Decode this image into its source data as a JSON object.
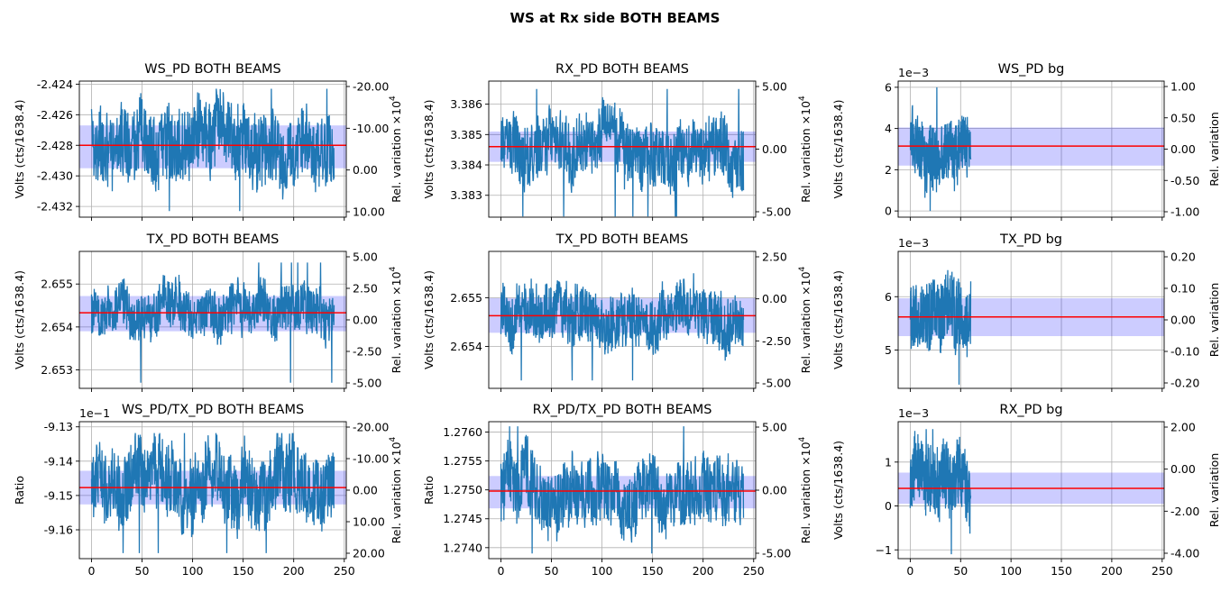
{
  "figure_title": "WS at Rx side BOTH BEAMS",
  "colors": {
    "trace": "#1f77b4",
    "mean_line": "#ff0000",
    "band": "#0000ff",
    "grid": "#b0b0b0",
    "axes": "#000000"
  },
  "chart_data": [
    {
      "type": "line",
      "title": "WS_PD BOTH BEAMS",
      "ylabel": "Volts (cts/1638.4)",
      "y2label": "Rel. variation ×10",
      "xlim": [
        -12,
        252
      ],
      "ylim": [
        -2.4327,
        -2.4238
      ],
      "yticks": [
        -2.424,
        -2.426,
        -2.428,
        -2.43,
        -2.432
      ],
      "ytick_labels": [
        "-2.424",
        "-2.426",
        "-2.428",
        "-2.430",
        "-2.432"
      ],
      "y2ticks": [
        "-20.00",
        "-10.00",
        "0.00",
        "10.00"
      ],
      "xticks": [
        0,
        50,
        100,
        150,
        200,
        250
      ],
      "show_xtick_labels": false,
      "series": {
        "x_range": [
          0,
          240
        ],
        "mean": -2.428,
        "typical_low": -2.4305,
        "typical_high": -2.4255,
        "min": -2.4323,
        "max": -2.4243
      },
      "band": [
        -2.4295,
        -2.4267
      ],
      "grid": true
    },
    {
      "type": "line",
      "title": "RX_PD BOTH BEAMS",
      "ylabel": "Volts (cts/1638.4)",
      "y2label": "Rel. variation ×10",
      "xlim": [
        -12,
        252
      ],
      "ylim": [
        3.38228,
        3.38676
      ],
      "yticks": [
        3.383,
        3.384,
        3.385,
        3.386
      ],
      "ytick_labels": [
        "3.383",
        "3.384",
        "3.385",
        "3.386"
      ],
      "y2ticks": [
        "5.00",
        "0.00",
        "-5.00"
      ],
      "xticks": [
        0,
        50,
        100,
        150,
        200,
        250
      ],
      "show_xtick_labels": false,
      "series": {
        "x_range": [
          0,
          240
        ],
        "mean": 3.3846,
        "typical_low": 3.3835,
        "typical_high": 3.3857,
        "min": 3.3823,
        "max": 3.3865
      },
      "band": [
        3.3841,
        3.3851
      ],
      "grid": true
    },
    {
      "type": "line",
      "title": "WS_PD bg",
      "offset_text": "1e−3",
      "ylabel": "Volts (cts/1638.4)",
      "y2label": "Rel. variation",
      "xlim": [
        -12,
        252
      ],
      "ylim": [
        -0.3,
        6.3
      ],
      "yticks": [
        0,
        2,
        4,
        6
      ],
      "ytick_labels": [
        "0",
        "2",
        "4",
        "6"
      ],
      "y2ticks": [
        "1.00",
        "0.50",
        "0.00",
        "-0.50",
        "-1.00"
      ],
      "xticks": [
        0,
        50,
        100,
        150,
        200,
        250
      ],
      "show_xtick_labels": false,
      "series": {
        "x_range": [
          0,
          60
        ],
        "mean": 3.15,
        "typical_low": 1.5,
        "typical_high": 4.8,
        "min": 0.0,
        "max": 6.0
      },
      "band": [
        2.2,
        4.05
      ],
      "grid": true
    },
    {
      "type": "line",
      "title": "TX_PD BOTH BEAMS",
      "ylabel": "Volts (cts/1638.4)",
      "y2label": "Rel. variation ×10",
      "xlim": [
        -12,
        252
      ],
      "ylim": [
        2.65257,
        2.65576
      ],
      "yticks": [
        2.653,
        2.654,
        2.655
      ],
      "ytick_labels": [
        "2.653",
        "2.654",
        "2.655"
      ],
      "y2ticks": [
        "5.00",
        "2.50",
        "0.00",
        "-2.50",
        "-5.00"
      ],
      "xticks": [
        0,
        50,
        100,
        150,
        200,
        250
      ],
      "show_xtick_labels": false,
      "series": {
        "x_range": [
          0,
          240
        ],
        "mean": 2.65433,
        "typical_low": 2.6537,
        "typical_high": 2.6549,
        "min": 2.6527,
        "max": 2.6555
      },
      "band": [
        2.6539,
        2.65472
      ],
      "grid": true
    },
    {
      "type": "line",
      "title": "TX_PD BOTH BEAMS",
      "ylabel": "Volts (cts/1638.4)",
      "y2label": "Rel. variation ×10",
      "xlim": [
        -12,
        252
      ],
      "ylim": [
        2.65314,
        2.65595
      ],
      "yticks": [
        2.654,
        2.655
      ],
      "ytick_labels": [
        "2.654",
        "2.655"
      ],
      "y2ticks": [
        "2.50",
        "0.00",
        "-2.50",
        "-5.00"
      ],
      "xticks": [
        0,
        50,
        100,
        150,
        200,
        250
      ],
      "show_xtick_labels": false,
      "series": {
        "x_range": [
          0,
          240
        ],
        "mean": 2.65463,
        "typical_low": 2.654,
        "typical_high": 2.6552,
        "min": 2.6533,
        "max": 2.6559
      },
      "band": [
        2.65428,
        2.65499
      ],
      "grid": true
    },
    {
      "type": "line",
      "title": "TX_PD bg",
      "offset_text": "1e−3",
      "ylabel": "Volts (cts/1638.4)",
      "y2label": "Rel. variation",
      "xlim": [
        -12,
        252
      ],
      "ylim": [
        4.28,
        6.85
      ],
      "yticks": [
        5,
        6
      ],
      "ytick_labels": [
        "5",
        "6"
      ],
      "y2ticks": [
        "0.20",
        "0.10",
        "0.00",
        "-0.10",
        "-0.20"
      ],
      "xticks": [
        0,
        50,
        100,
        150,
        200,
        250
      ],
      "show_xtick_labels": false,
      "series": {
        "x_range": [
          0,
          60
        ],
        "mean": 5.62,
        "typical_low": 4.95,
        "typical_high": 6.3,
        "min": 4.35,
        "max": 6.65
      },
      "band": [
        5.26,
        5.97
      ],
      "grid": true
    },
    {
      "type": "line",
      "title": "WS_PD/TX_PD BOTH BEAMS",
      "offset_text": "1e−1",
      "ylabel": "Ratio",
      "y2label": "Rel. variation ×10",
      "xlim": [
        -12,
        252
      ],
      "ylim": [
        -9.1684,
        -9.1285
      ],
      "yticks": [
        -9.13,
        -9.14,
        -9.15,
        -9.16
      ],
      "ytick_labels": [
        "-9.13",
        "-9.14",
        "-9.15",
        "-9.16"
      ],
      "y2ticks": [
        "-20.00",
        "-10.00",
        "0.00",
        "10.00",
        "20.00"
      ],
      "xticks": [
        0,
        50,
        100,
        150,
        200,
        250
      ],
      "show_xtick_labels": true,
      "series": {
        "x_range": [
          0,
          240
        ],
        "mean": -9.1477,
        "typical_low": -9.159,
        "typical_high": -9.137,
        "min": -9.1668,
        "max": -9.1318
      },
      "band": [
        -9.1526,
        -9.1428
      ],
      "grid": true
    },
    {
      "type": "line",
      "title": "RX_PD/TX_PD BOTH BEAMS",
      "ylabel": "Ratio",
      "y2label": "Rel. variation ×10",
      "xlim": [
        -12,
        252
      ],
      "ylim": [
        1.27381,
        1.27618
      ],
      "yticks": [
        1.274,
        1.2745,
        1.275,
        1.2755,
        1.276
      ],
      "ytick_labels": [
        "1.2740",
        "1.2745",
        "1.2750",
        "1.2755",
        "1.2760"
      ],
      "y2ticks": [
        "5.00",
        "0.00",
        "-5.00"
      ],
      "xticks": [
        0,
        50,
        100,
        150,
        200,
        250
      ],
      "show_xtick_labels": true,
      "series": {
        "x_range": [
          0,
          240
        ],
        "mean": 1.27498,
        "typical_low": 1.2744,
        "typical_high": 1.2756,
        "min": 1.2739,
        "max": 1.2761
      },
      "band": [
        1.27468,
        1.27524
      ],
      "grid": true
    },
    {
      "type": "line",
      "title": "RX_PD bg",
      "offset_text": "1e−3",
      "ylabel": "Volts (cts/1638.4)",
      "y2label": "Rel. variation",
      "xlim": [
        -12,
        252
      ],
      "ylim": [
        -1.2,
        1.92
      ],
      "yticks": [
        -1,
        0,
        1
      ],
      "ytick_labels": [
        "−1",
        "0",
        "1"
      ],
      "y2ticks": [
        "2.00",
        "0.00",
        "-2.00",
        "-4.00"
      ],
      "xticks": [
        0,
        50,
        100,
        150,
        200,
        250
      ],
      "show_xtick_labels": true,
      "series": {
        "x_range": [
          0,
          60
        ],
        "mean": 0.4,
        "typical_low": -0.4,
        "typical_high": 1.2,
        "min": -1.1,
        "max": 1.75
      },
      "band": [
        0.05,
        0.76
      ],
      "grid": true
    }
  ]
}
